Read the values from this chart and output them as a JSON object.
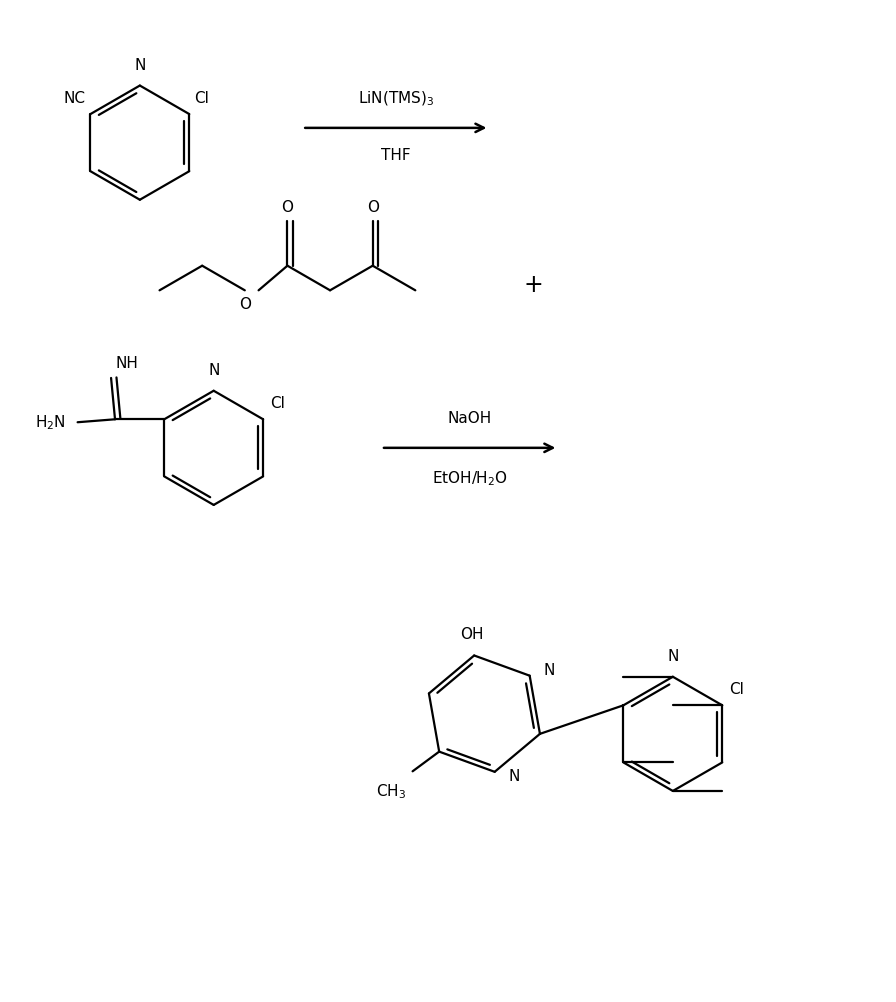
{
  "bg_color": "#ffffff",
  "line_color": "#000000",
  "line_width": 1.6,
  "font_size": 11,
  "fig_width": 8.96,
  "fig_height": 10.02,
  "reaction1_arrow_text_top": "LiN(TMS)$_3$",
  "reaction1_arrow_text_bot": "THF",
  "reaction2_arrow_text_top": "NaOH",
  "reaction2_arrow_text_bot": "EtOH/H$_2$O"
}
